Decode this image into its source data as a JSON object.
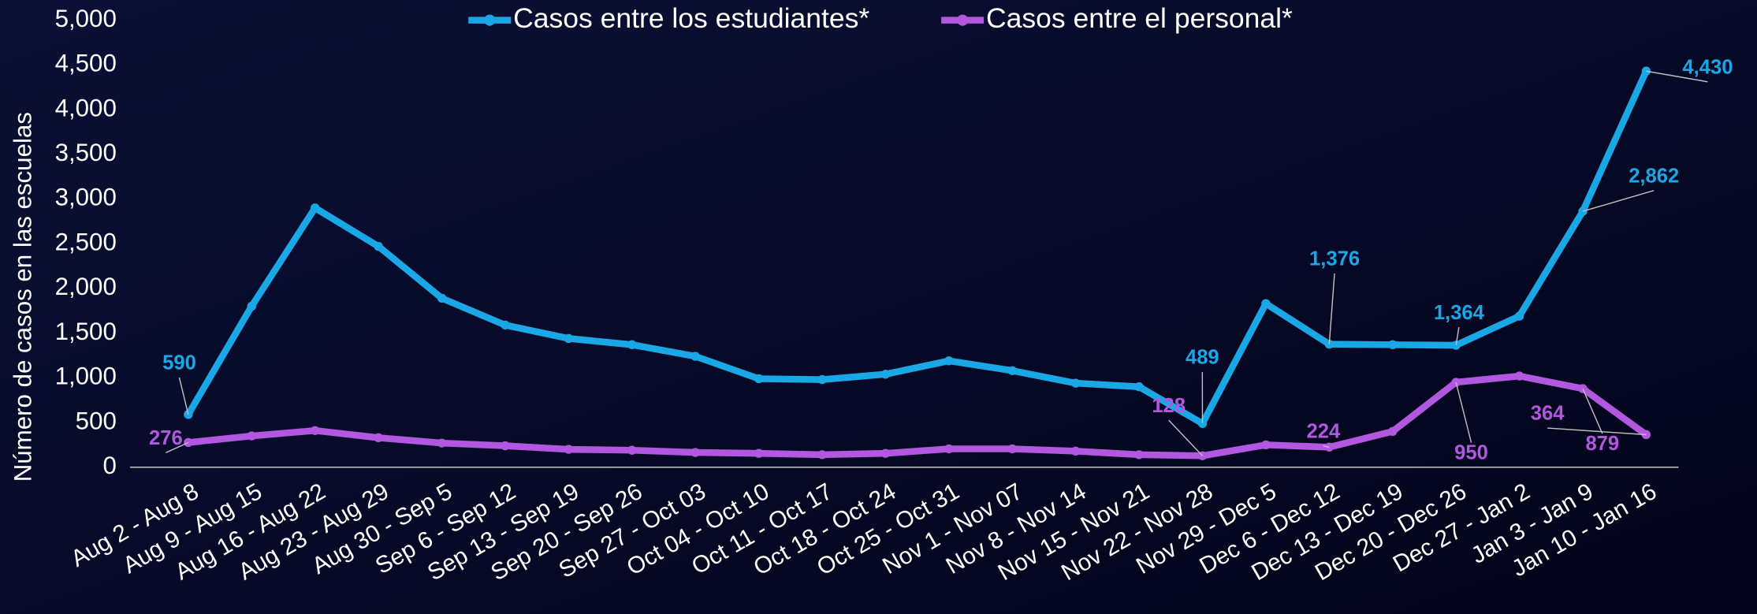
{
  "chart_data": {
    "type": "line",
    "y_label": "Número de casos en las escuelas",
    "categories": [
      "Aug 2 - Aug 8",
      "Aug 9 - Aug 15",
      "Aug 16 - Aug 22",
      "Aug 23 - Aug 29",
      "Aug 30 - Sep 5",
      "Sep 6 - Sep 12",
      "Sep 13 - Sep 19",
      "Sep 20 - Sep 26",
      "Sep 27 - Oct 03",
      "Oct 04 - Oct 10",
      "Oct 11 - Oct 17",
      "Oct 18 - Oct 24",
      "Oct 25 - Oct 31",
      "Nov 1 - Nov 07",
      "Nov 8 - Nov 14",
      "Nov 15 - Nov 21",
      "Nov 22 - Nov 28",
      "Nov 29 - Dec 5",
      "Dec 6 - Dec 12",
      "Dec 13 - Dec 19",
      "Dec 20 - Dec 26",
      "Dec 27 - Jan 2",
      "Jan 3 - Jan 9",
      "Jan 10 - Jan 16"
    ],
    "series": [
      {
        "name": "Casos entre los estudiantes*",
        "color": "#1aa7e6",
        "values": [
          590,
          1800,
          2900,
          2470,
          1890,
          1590,
          1440,
          1370,
          1240,
          990,
          980,
          1040,
          1190,
          1080,
          940,
          900,
          489,
          1830,
          1376,
          1370,
          1364,
          1690,
          2862,
          4430
        ],
        "value_labels": [
          "590",
          null,
          null,
          null,
          null,
          null,
          null,
          null,
          null,
          null,
          null,
          null,
          null,
          null,
          null,
          null,
          "489",
          null,
          "1,376",
          null,
          "1,364",
          null,
          "2,862",
          "4,430"
        ]
      },
      {
        "name": "Casos entre el personal*",
        "color": "#b257df",
        "values": [
          276,
          350,
          410,
          330,
          270,
          240,
          200,
          190,
          165,
          155,
          140,
          155,
          205,
          205,
          180,
          140,
          128,
          250,
          224,
          400,
          950,
          1020,
          879,
          364
        ],
        "value_labels": [
          "276",
          null,
          null,
          null,
          null,
          null,
          null,
          null,
          null,
          null,
          null,
          null,
          null,
          null,
          null,
          null,
          "128",
          null,
          "224",
          null,
          "950",
          null,
          "879",
          "364"
        ]
      }
    ],
    "ylim": [
      0,
      5000
    ],
    "yticks": [
      0,
      500,
      {
        "value": 1000,
        "label": "1,000"
      },
      {
        "value": 1500,
        "label": "1,500"
      },
      {
        "value": 2000,
        "label": "2,000"
      },
      {
        "value": 2500,
        "label": "2,500"
      },
      {
        "value": 3000,
        "label": "3,000"
      },
      {
        "value": 3500,
        "label": "3,500"
      },
      {
        "value": 4000,
        "label": "4,000"
      },
      {
        "value": 4500,
        "label": "4,500"
      },
      {
        "value": 5000,
        "label": "5,000"
      }
    ],
    "grid": false,
    "legend": "top"
  }
}
